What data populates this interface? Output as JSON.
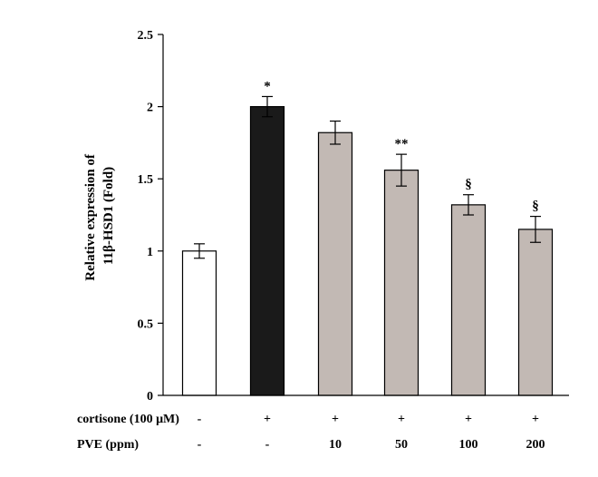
{
  "chart_data": {
    "type": "bar",
    "title": "",
    "ylabel_lines": [
      "Relative expression of",
      "11β-HSD1 (Fold)"
    ],
    "ylim": [
      0,
      2.5
    ],
    "yticks": [
      "0",
      "0.5",
      "1",
      "1.5",
      "2",
      "2.5"
    ],
    "ytick_values": [
      0,
      0.5,
      1,
      1.5,
      2,
      2.5
    ],
    "grid": false,
    "legend": false,
    "bars": [
      {
        "value": 1.0,
        "error": 0.05,
        "sig": "",
        "fill": "#ffffff"
      },
      {
        "value": 2.0,
        "error": 0.07,
        "sig": "*",
        "fill": "#1a1a1a"
      },
      {
        "value": 1.82,
        "error": 0.08,
        "sig": "",
        "fill": "#c2b9b4"
      },
      {
        "value": 1.56,
        "error": 0.11,
        "sig": "**",
        "fill": "#c2b9b4"
      },
      {
        "value": 1.32,
        "error": 0.07,
        "sig": "§",
        "fill": "#c2b9b4"
      },
      {
        "value": 1.15,
        "error": 0.09,
        "sig": "§",
        "fill": "#c2b9b4"
      }
    ],
    "conditions": [
      {
        "label": "cortisone (100 μM)",
        "values": [
          "-",
          "+",
          "+",
          "+",
          "+",
          "+"
        ]
      },
      {
        "label": "PVE (ppm)",
        "values": [
          "-",
          "-",
          "10",
          "50",
          "100",
          "200"
        ]
      }
    ]
  }
}
